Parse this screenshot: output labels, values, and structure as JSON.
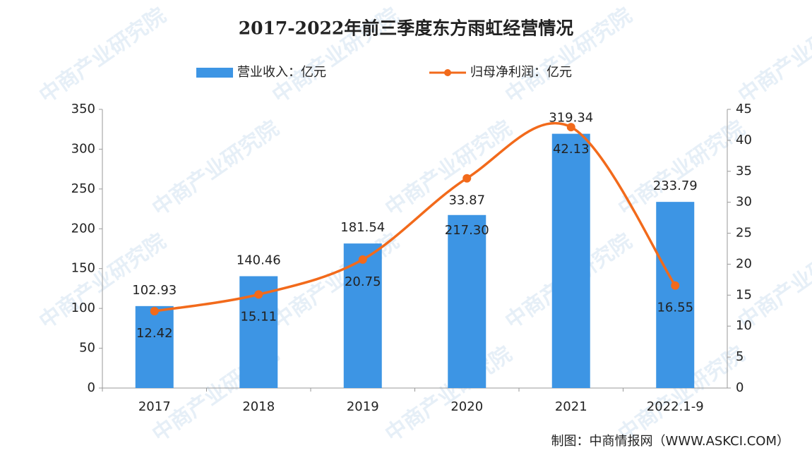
{
  "chart_data": {
    "type": "bar",
    "title": "2017-2022年前三季度东方雨虹经营情况",
    "categories": [
      "2017",
      "2018",
      "2019",
      "2020",
      "2021",
      "2022.1-9"
    ],
    "series": [
      {
        "name": "营业收入：亿元",
        "type": "bar",
        "color": "#3d95e4",
        "values": [
          102.93,
          140.46,
          181.54,
          217.3,
          319.34,
          233.79
        ],
        "value_labels": [
          "102.93",
          "140.46",
          "181.54",
          "217.30",
          "319.34",
          "233.79"
        ]
      },
      {
        "name": "归母净利润：亿元",
        "type": "line",
        "axis": "y2",
        "color": "#f26a1b",
        "values": [
          12.42,
          15.11,
          20.75,
          33.87,
          42.13,
          16.55
        ]
      }
    ],
    "ylim": [
      0,
      350
    ],
    "yticks": [
      0,
      50,
      100,
      150,
      200,
      250,
      300,
      350
    ],
    "y2lim": [
      0,
      45
    ],
    "y2ticks": [
      0,
      5,
      10,
      15,
      20,
      25,
      30,
      35,
      40,
      45
    ],
    "grid": false,
    "legend": "top",
    "source": "制图：中商情报网（WWW.ASKCI.COM）",
    "watermark": "中商产业研究院"
  }
}
